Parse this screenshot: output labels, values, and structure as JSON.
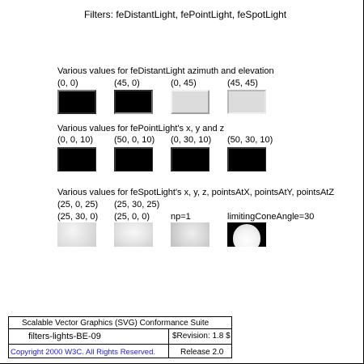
{
  "page": {
    "title": "Filters: feDistantLight, fePointLight, feSpotLight"
  },
  "distant": {
    "caption": "Various values for feDistantLight azimuth and elevation",
    "labels": [
      "(0, 0)",
      "(45, 0)",
      "(0, 45)",
      "(45, 45)"
    ]
  },
  "point": {
    "caption": "Various values for fePointLight's x, y and z",
    "labels": [
      "(0, 0, 10)",
      "(50, 0, 10)",
      "(0, 30, 10)",
      "(50, 30, 10)"
    ]
  },
  "spot": {
    "caption": "Various values for feSpotLight's x, y, z, pointsAtX, pointsAtY, pointsAtZ",
    "labels_line1": [
      "(25, 0, 25)",
      "(25, 30, 25)"
    ],
    "labels_line2": [
      "(25, 30, 0)",
      "(25, 0, 0)",
      "np=1",
      "limitingConeAngle=30"
    ]
  },
  "footer": {
    "suite": "Scalable Vector Graphics (SVG) Conformance Suite",
    "test_name": "filters-lights-BE-09",
    "revision": "$Revision: 1.8 $",
    "copyright": "Copyright 2000 W3C. All Rights Reserved.",
    "release": "Release 2.0"
  }
}
